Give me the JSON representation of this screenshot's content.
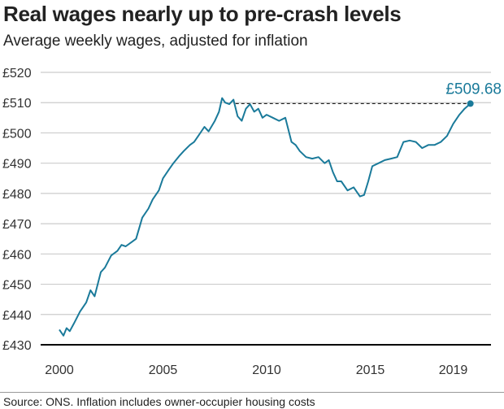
{
  "chart_data": {
    "type": "line",
    "title": "Real wages nearly up to pre-crash levels",
    "subtitle": "Average weekly wages, adjusted for inflation",
    "xlabel": "",
    "ylabel": "",
    "ylim": [
      430,
      520
    ],
    "yticks": [
      430,
      440,
      450,
      460,
      470,
      480,
      490,
      500,
      510,
      520
    ],
    "ytick_labels": [
      "£430",
      "£440",
      "£450",
      "£460",
      "£470",
      "£480",
      "£490",
      "£500",
      "£510",
      "£520"
    ],
    "xticks": [
      2000,
      2005,
      2010,
      2015,
      2019
    ],
    "xtick_labels": [
      "2000",
      "2005",
      "2010",
      "2015",
      "2019"
    ],
    "grid": true,
    "line_color": "#1a7a9a",
    "series": [
      {
        "name": "Average weekly wages",
        "x": [
          2000.0,
          2000.2,
          2000.35,
          2000.5,
          2000.7,
          2001.0,
          2001.3,
          2001.5,
          2001.7,
          2002.0,
          2002.2,
          2002.5,
          2002.8,
          2003.0,
          2003.2,
          2003.5,
          2003.7,
          2004.0,
          2004.3,
          2004.5,
          2004.8,
          2005.0,
          2005.3,
          2005.5,
          2005.8,
          2006.0,
          2006.3,
          2006.5,
          2006.7,
          2007.0,
          2007.2,
          2007.5,
          2007.7,
          2007.85,
          2008.0,
          2008.2,
          2008.4,
          2008.6,
          2008.8,
          2009.0,
          2009.2,
          2009.4,
          2009.6,
          2009.8,
          2010.0,
          2010.3,
          2010.6,
          2010.9,
          2011.2,
          2011.4,
          2011.6,
          2011.9,
          2012.2,
          2012.5,
          2012.8,
          2013.0,
          2013.2,
          2013.4,
          2013.6,
          2013.9,
          2014.2,
          2014.5,
          2014.7,
          2014.9,
          2015.1,
          2015.4,
          2015.7,
          2016.0,
          2016.3,
          2016.6,
          2016.9,
          2017.2,
          2017.5,
          2017.8,
          2018.1,
          2018.4,
          2018.7,
          2019.0,
          2019.3,
          2019.55,
          2019.83
        ],
        "y": [
          435,
          433,
          435.5,
          434.5,
          437,
          441,
          444,
          448,
          446,
          454,
          455.5,
          459.5,
          461,
          463,
          462.5,
          464,
          465,
          472,
          475,
          478,
          481,
          485,
          488,
          490,
          492.5,
          494,
          496,
          497,
          499,
          502,
          500.5,
          504,
          507,
          511.5,
          510,
          509.5,
          511,
          505.5,
          504,
          508,
          509.5,
          507,
          508,
          505,
          506,
          505,
          504,
          505,
          497,
          496,
          494,
          492,
          491.5,
          492,
          490,
          491,
          487,
          484,
          484,
          481,
          482,
          479,
          479.5,
          484,
          489,
          490,
          491,
          491.5,
          492,
          497,
          497.5,
          497,
          495,
          496,
          496,
          497,
          499,
          503,
          506,
          508,
          509.68
        ]
      }
    ],
    "annotations": [
      {
        "text": "£509.68",
        "x": 2019.83,
        "y": 509.68
      }
    ],
    "reference_line": {
      "y": 509.68,
      "from_x": 2008.5,
      "style": "dashed"
    }
  },
  "source": "Source: ONS. Inflation includes owner-occupier housing costs"
}
